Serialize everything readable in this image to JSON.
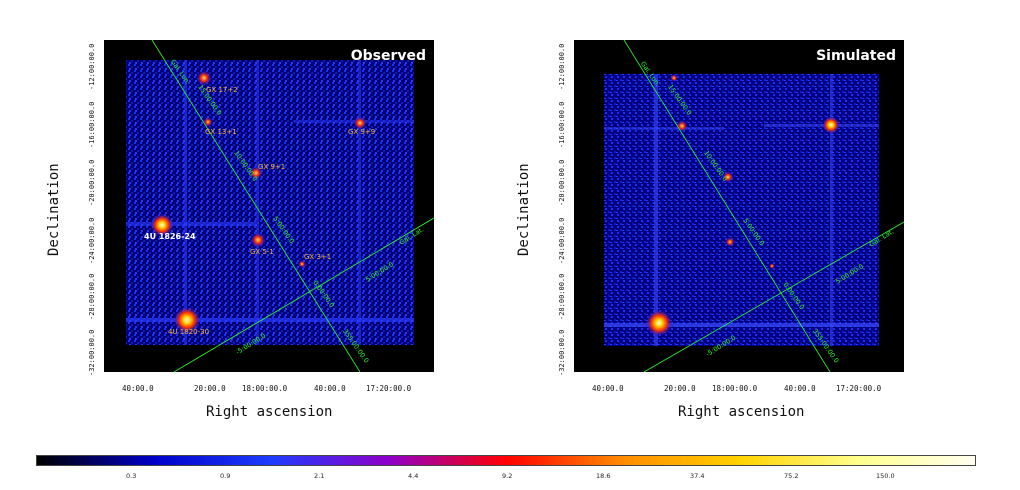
{
  "panels": {
    "observed": {
      "title": "Observed",
      "sources": [
        {
          "name": "GX 17+2"
        },
        {
          "name": "GX 13+1"
        },
        {
          "name": "GX 9+9"
        },
        {
          "name": "GX 9+1"
        },
        {
          "name": "4U 1826-24"
        },
        {
          "name": "GX 5-1"
        },
        {
          "name": "GX 3+1"
        },
        {
          "name": "4U 1820-30"
        }
      ],
      "grid_labels": [
        "Gal. Lon.",
        "15:00:00.0",
        "10:00:00.0",
        "5:00:00.0",
        "0:00:00.0",
        "355:00:00.0",
        "Gal. Lat.",
        "5:00:00.0",
        "-5:00:00.0"
      ]
    },
    "simulated": {
      "title": "Simulated",
      "grid_labels": [
        "Gal. Lon.",
        "15:00:00.0",
        "10:00:00.0",
        "5:00:00.0",
        "0:00:00.0",
        "355:00:00.0",
        "Gal. Lat.",
        "5:00:00.0",
        "-5:00:00.0"
      ]
    }
  },
  "axes": {
    "xlabel": "Right ascension",
    "ylabel": "Declination",
    "xticks": [
      "40:00.0",
      "20:00.0",
      "18:00:00.0",
      "40:00.0",
      "17:20:00.0"
    ],
    "yticks": [
      "-12:00:00.0",
      "-16:00:00.0",
      "-20:00:00.0",
      "-24:00:00.0",
      "-28:00:00.0",
      "-32:00:00.0"
    ]
  },
  "colorbar": {
    "ticks": [
      "0.3",
      "0.9",
      "2.1",
      "4.4",
      "9.2",
      "18.6",
      "37.4",
      "75.2",
      "150.0"
    ],
    "colors": [
      "#000000",
      "#0000c8",
      "#1e3cff",
      "#8c00c8",
      "#ff0000",
      "#ff8c00",
      "#ffd200",
      "#ffff8c",
      "#fffff0"
    ]
  }
}
